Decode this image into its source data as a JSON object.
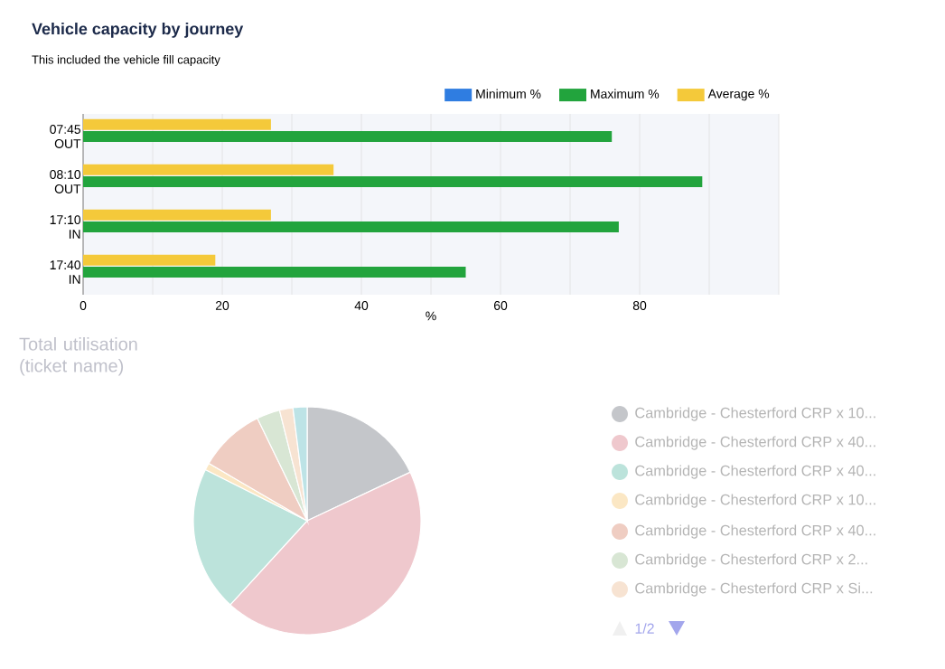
{
  "chart_data": [
    {
      "type": "bar",
      "orientation": "horizontal",
      "title": "Vehicle capacity by journey",
      "subtitle": "This included the vehicle fill capacity",
      "xlabel": "%",
      "categories": [
        "07:45 OUT",
        "08:10 OUT",
        "17:10 IN",
        "17:40 IN"
      ],
      "series": [
        {
          "name": "Minimum %",
          "color": "#2f7de1",
          "values": [
            0,
            0,
            0,
            0
          ]
        },
        {
          "name": "Maximum %",
          "color": "#22a43d",
          "values": [
            76,
            89,
            77,
            55
          ]
        },
        {
          "name": "Average %",
          "color": "#f4c93a",
          "values": [
            27,
            36,
            27,
            19
          ]
        }
      ],
      "xlim": [
        0,
        100
      ],
      "xticks": [
        0,
        {
          "value": 10,
          "label": null
        },
        20,
        {
          "value": 30,
          "label": null
        },
        40,
        {
          "value": 50,
          "label": null
        },
        60,
        {
          "value": 70,
          "label": null
        },
        80,
        {
          "value": 90,
          "label": null
        },
        {
          "value": 100,
          "label": null
        }
      ],
      "grid": "x",
      "legend": "top right"
    },
    {
      "type": "pie",
      "title": "Total utilisation (ticket name)",
      "categories": [
        "Cambridge - Chesterford CRP x 10...",
        "Cambridge - Chesterford CRP x 40...",
        "Cambridge - Chesterford CRP x 40...",
        "Cambridge - Chesterford CRP x 10...",
        "Cambridge - Chesterford CRP x 40...",
        "Cambridge - Chesterford CRP x 2...",
        "Cambridge - Chesterford CRP x Si...",
        null
      ],
      "values": [
        18,
        43.8,
        20.6,
        1,
        9.4,
        3.3,
        1.9,
        2
      ],
      "colors": [
        "#c4c6ca",
        "#efc8cd",
        "#bce3db",
        "#fbe7c4",
        "#efcdc2",
        "#d8e6d4",
        "#f7e3d2",
        "#bde3e6"
      ],
      "legend": "right",
      "annotations": [
        "1/2"
      ]
    }
  ]
}
